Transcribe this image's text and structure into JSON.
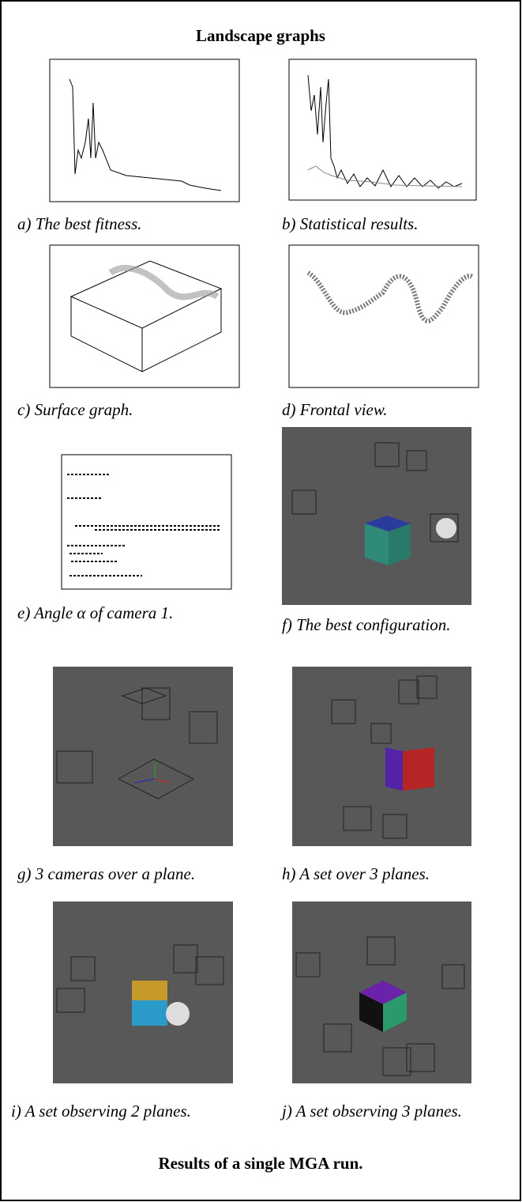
{
  "title": "Landscape graphs",
  "panels": [
    {
      "caption": "a) The best fitness."
    },
    {
      "caption": "b) Statistical results."
    },
    {
      "caption": "c) Surface graph."
    },
    {
      "caption": "d) Frontal view."
    },
    {
      "caption": "e) Angle α of camera 1."
    },
    {
      "caption": "f) The best configuration."
    },
    {
      "caption": "g) 3 cameras over a plane."
    },
    {
      "caption": "h) A set over 3 planes."
    },
    {
      "caption": "i) A set observing 2 planes."
    },
    {
      "caption": "j) A set observing 3 planes."
    }
  ],
  "footer": "Results of a single MGA run."
}
